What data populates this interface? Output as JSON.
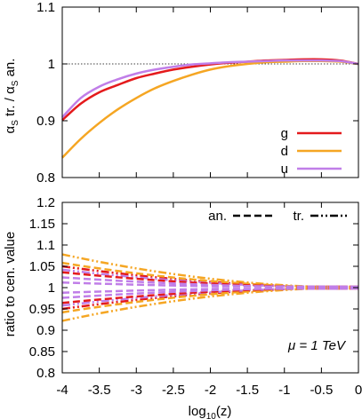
{
  "chart_data": [
    {
      "type": "line",
      "ylabel_main": "α",
      "ylabel_sub1": "S",
      "ylabel_mid": " tr. / α",
      "ylabel_sub2": "S",
      "ylabel_end": " an.",
      "xlim": [
        -4,
        0
      ],
      "ylim": [
        0.8,
        1.1
      ],
      "yticks": [
        "0.8",
        "0.9",
        "1",
        "1.1"
      ],
      "ytick_values": [
        0.8,
        0.9,
        1.0,
        1.1
      ],
      "reference_line": 1.0,
      "legend_position": "bottom-right",
      "series": [
        {
          "name": "g",
          "color": "#e41a1c",
          "x": [
            -4,
            -3.75,
            -3.5,
            -3.25,
            -3,
            -2.75,
            -2.5,
            -2.25,
            -2,
            -1.75,
            -1.5,
            -1.25,
            -1,
            -0.75,
            -0.5,
            -0.25,
            0
          ],
          "y": [
            0.901,
            0.93,
            0.95,
            0.963,
            0.975,
            0.983,
            0.99,
            0.995,
            0.999,
            1.002,
            1.004,
            1.006,
            1.007,
            1.008,
            1.008,
            1.006,
            1.0
          ]
        },
        {
          "name": "d",
          "color": "#f5a623",
          "x": [
            -4,
            -3.75,
            -3.5,
            -3.25,
            -3,
            -2.75,
            -2.5,
            -2.25,
            -2,
            -1.75,
            -1.5,
            -1.25,
            -1,
            -0.75,
            -0.5,
            -0.25,
            0
          ],
          "y": [
            0.835,
            0.868,
            0.896,
            0.92,
            0.94,
            0.957,
            0.97,
            0.981,
            0.99,
            0.996,
            1.0,
            1.003,
            1.004,
            1.005,
            1.005,
            1.004,
            1.0
          ]
        },
        {
          "name": "u",
          "color": "#c07ee8",
          "x": [
            -4,
            -3.75,
            -3.5,
            -3.25,
            -3,
            -2.75,
            -2.5,
            -2.25,
            -2,
            -1.75,
            -1.5,
            -1.25,
            -1,
            -0.75,
            -0.5,
            -0.25,
            0
          ],
          "y": [
            0.906,
            0.94,
            0.96,
            0.973,
            0.983,
            0.99,
            0.995,
            0.999,
            1.001,
            1.003,
            1.004,
            1.005,
            1.006,
            1.006,
            1.006,
            1.005,
            1.0
          ]
        }
      ]
    },
    {
      "type": "line",
      "xlabel_main": "log",
      "xlabel_sub": "10",
      "xlabel_end": "(z)",
      "ylabel": "ratio to cen. value",
      "xlim": [
        -4,
        0
      ],
      "ylim": [
        0.8,
        1.2
      ],
      "xticks": [
        "-4",
        "-3.5",
        "-3",
        "-2.5",
        "-2",
        "-1.5",
        "-1",
        "-0.5",
        "0"
      ],
      "xtick_values": [
        -4,
        -3.5,
        -3,
        -2.5,
        -2,
        -1.5,
        -1,
        -0.5,
        0
      ],
      "yticks": [
        "0.8",
        "0.85",
        "0.9",
        "0.95",
        "1",
        "1.05",
        "1.1",
        "1.15",
        "1.2"
      ],
      "ytick_values": [
        0.8,
        0.85,
        0.9,
        0.95,
        1.0,
        1.05,
        1.1,
        1.15,
        1.2
      ],
      "legend_position": "top",
      "legend": [
        {
          "name": "an.",
          "style": "dashed"
        },
        {
          "name": "tr.",
          "style": "dash-dot-dot"
        }
      ],
      "annotation": "μ = 1 TeV",
      "bands": [
        {
          "flavor": "d",
          "style": "dash-dot-dot",
          "color": "#f5a623",
          "dev_at_x_min": 0.078
        },
        {
          "flavor": "g",
          "style": "dash-dot-dot",
          "color": "#e41a1c",
          "dev_at_x_min": 0.05
        },
        {
          "flavor": "u",
          "style": "dash-dot-dot",
          "color": "#c07ee8",
          "dev_at_x_min": 0.042
        },
        {
          "flavor": "d",
          "style": "dashed",
          "color": "#f5a623",
          "dev_at_x_min": 0.058
        },
        {
          "flavor": "g",
          "style": "dashed",
          "color": "#e41a1c",
          "dev_at_x_min": 0.036
        },
        {
          "flavor": "u",
          "style": "dashed",
          "color": "#c07ee8",
          "dev_at_x_min": 0.024
        },
        {
          "flavor": "u",
          "style": "dashed",
          "color": "#c07ee8",
          "dev_at_x_min": 0.012
        }
      ]
    }
  ]
}
